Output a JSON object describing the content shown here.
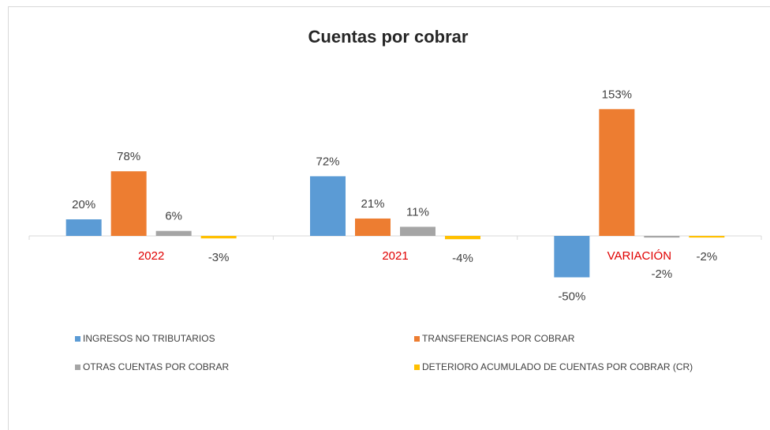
{
  "chart_data": {
    "type": "bar",
    "title": "Cuentas por cobrar",
    "categories": [
      "2022",
      "2021",
      "VARIACIÓN"
    ],
    "series": [
      {
        "name": "INGRESOS NO TRIBUTARIOS",
        "color": "#5b9bd5",
        "values": [
          20,
          72,
          -50
        ],
        "value_labels": [
          "20%",
          "72%",
          "-50%"
        ]
      },
      {
        "name": "TRANSFERENCIAS POR COBRAR",
        "color": "#ed7d31",
        "values": [
          78,
          21,
          153
        ],
        "value_labels": [
          "78%",
          "21%",
          "153%"
        ]
      },
      {
        "name": "OTRAS CUENTAS POR COBRAR",
        "color": "#a5a5a5",
        "values": [
          6,
          11,
          -2
        ],
        "value_labels": [
          "6%",
          "11%",
          "-2%"
        ]
      },
      {
        "name": "DETERIORO ACUMULADO DE CUENTAS POR COBRAR (CR)",
        "color": "#ffc000",
        "values": [
          -3,
          -4,
          -2
        ],
        "value_labels": [
          "-3%",
          "-4%",
          "-2%"
        ]
      }
    ],
    "category_label_color": "#e00000",
    "legend": "bottom"
  }
}
